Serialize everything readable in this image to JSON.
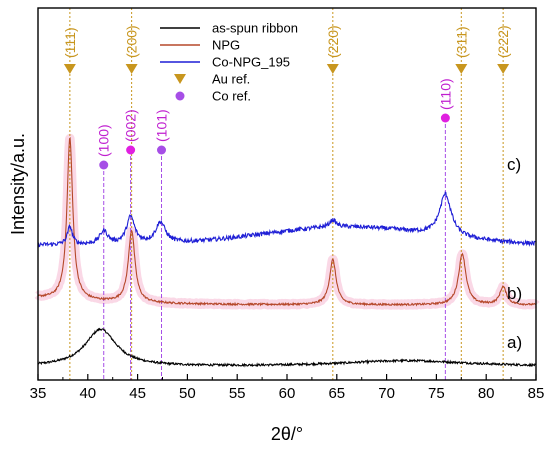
{
  "chart_data": {
    "type": "line",
    "xlabel": "2θ/°",
    "ylabel": "Intensity/a.u.",
    "xlim": [
      35,
      85
    ],
    "xticks": [
      35,
      40,
      45,
      50,
      55,
      60,
      65,
      70,
      75,
      80,
      85
    ],
    "yticks_shown": false,
    "grid": false,
    "legend": {
      "placement": "top-center",
      "entries": [
        {
          "label": "as-spun ribbon",
          "marker": "line",
          "color": "#000000"
        },
        {
          "label": "NPG",
          "marker": "line",
          "color": "#b5482a"
        },
        {
          "label": "Co-NPG_195",
          "marker": "line",
          "color": "#1f1fd6"
        },
        {
          "label": "Au ref.",
          "marker": "triangle-down",
          "color": "#c8961e"
        },
        {
          "label": "Co ref.",
          "marker": "circle",
          "color": "#a64ee6"
        }
      ]
    },
    "series": [
      {
        "name": "as-spun ribbon",
        "color": "#000000",
        "curve_label": "a)",
        "offset": 0.0,
        "baseline": 0.02,
        "peaks": [
          {
            "x": 41.3,
            "height": 0.62,
            "width": 1.9
          },
          {
            "x": 72.0,
            "height": 0.1,
            "width": 8.0
          }
        ]
      },
      {
        "name": "NPG",
        "color": "#b5482a",
        "curve_label": "b)",
        "offset": 0.85,
        "baseline": 0.2,
        "peaks": [
          {
            "x": 38.2,
            "height": 2.7,
            "width": 0.35
          },
          {
            "x": 44.4,
            "height": 1.2,
            "width": 0.4
          },
          {
            "x": 64.6,
            "height": 0.75,
            "width": 0.4
          },
          {
            "x": 77.6,
            "height": 0.85,
            "width": 0.45
          },
          {
            "x": 81.7,
            "height": 0.3,
            "width": 0.4
          }
        ]
      },
      {
        "name": "Co-NPG_195",
        "color": "#1f1fd6",
        "curve_label": "c)",
        "offset": 1.95,
        "baseline": 0.1,
        "peaks": [
          {
            "x": 38.2,
            "height": 0.3,
            "width": 0.3
          },
          {
            "x": 41.6,
            "height": 0.22,
            "width": 0.5
          },
          {
            "x": 44.3,
            "height": 0.45,
            "width": 0.5
          },
          {
            "x": 47.3,
            "height": 0.35,
            "width": 0.6
          },
          {
            "x": 64.6,
            "height": 0.12,
            "width": 0.4
          },
          {
            "x": 75.9,
            "height": 0.7,
            "width": 0.7
          }
        ],
        "broad_hump": {
          "x": 66,
          "height": 0.3,
          "width": 12
        }
      }
    ],
    "au_reference": [
      {
        "x": 38.2,
        "label": "(111)"
      },
      {
        "x": 44.4,
        "label": "(200)"
      },
      {
        "x": 64.6,
        "label": "(220)"
      },
      {
        "x": 77.5,
        "label": "(311)"
      },
      {
        "x": 81.7,
        "label": "(222)"
      }
    ],
    "co_reference": [
      {
        "x": 41.6,
        "label": "(100)"
      },
      {
        "x": 44.3,
        "label": "(002)"
      },
      {
        "x": 47.4,
        "label": "(101)"
      },
      {
        "x": 75.9,
        "label": "(110)"
      }
    ],
    "colors": {
      "au_marker": "#c8961e",
      "co_marker": "#a64ee6",
      "co_text": "#c020d0",
      "co_marker_alt": "#e020e0",
      "glow": "#f4a8c8"
    }
  }
}
